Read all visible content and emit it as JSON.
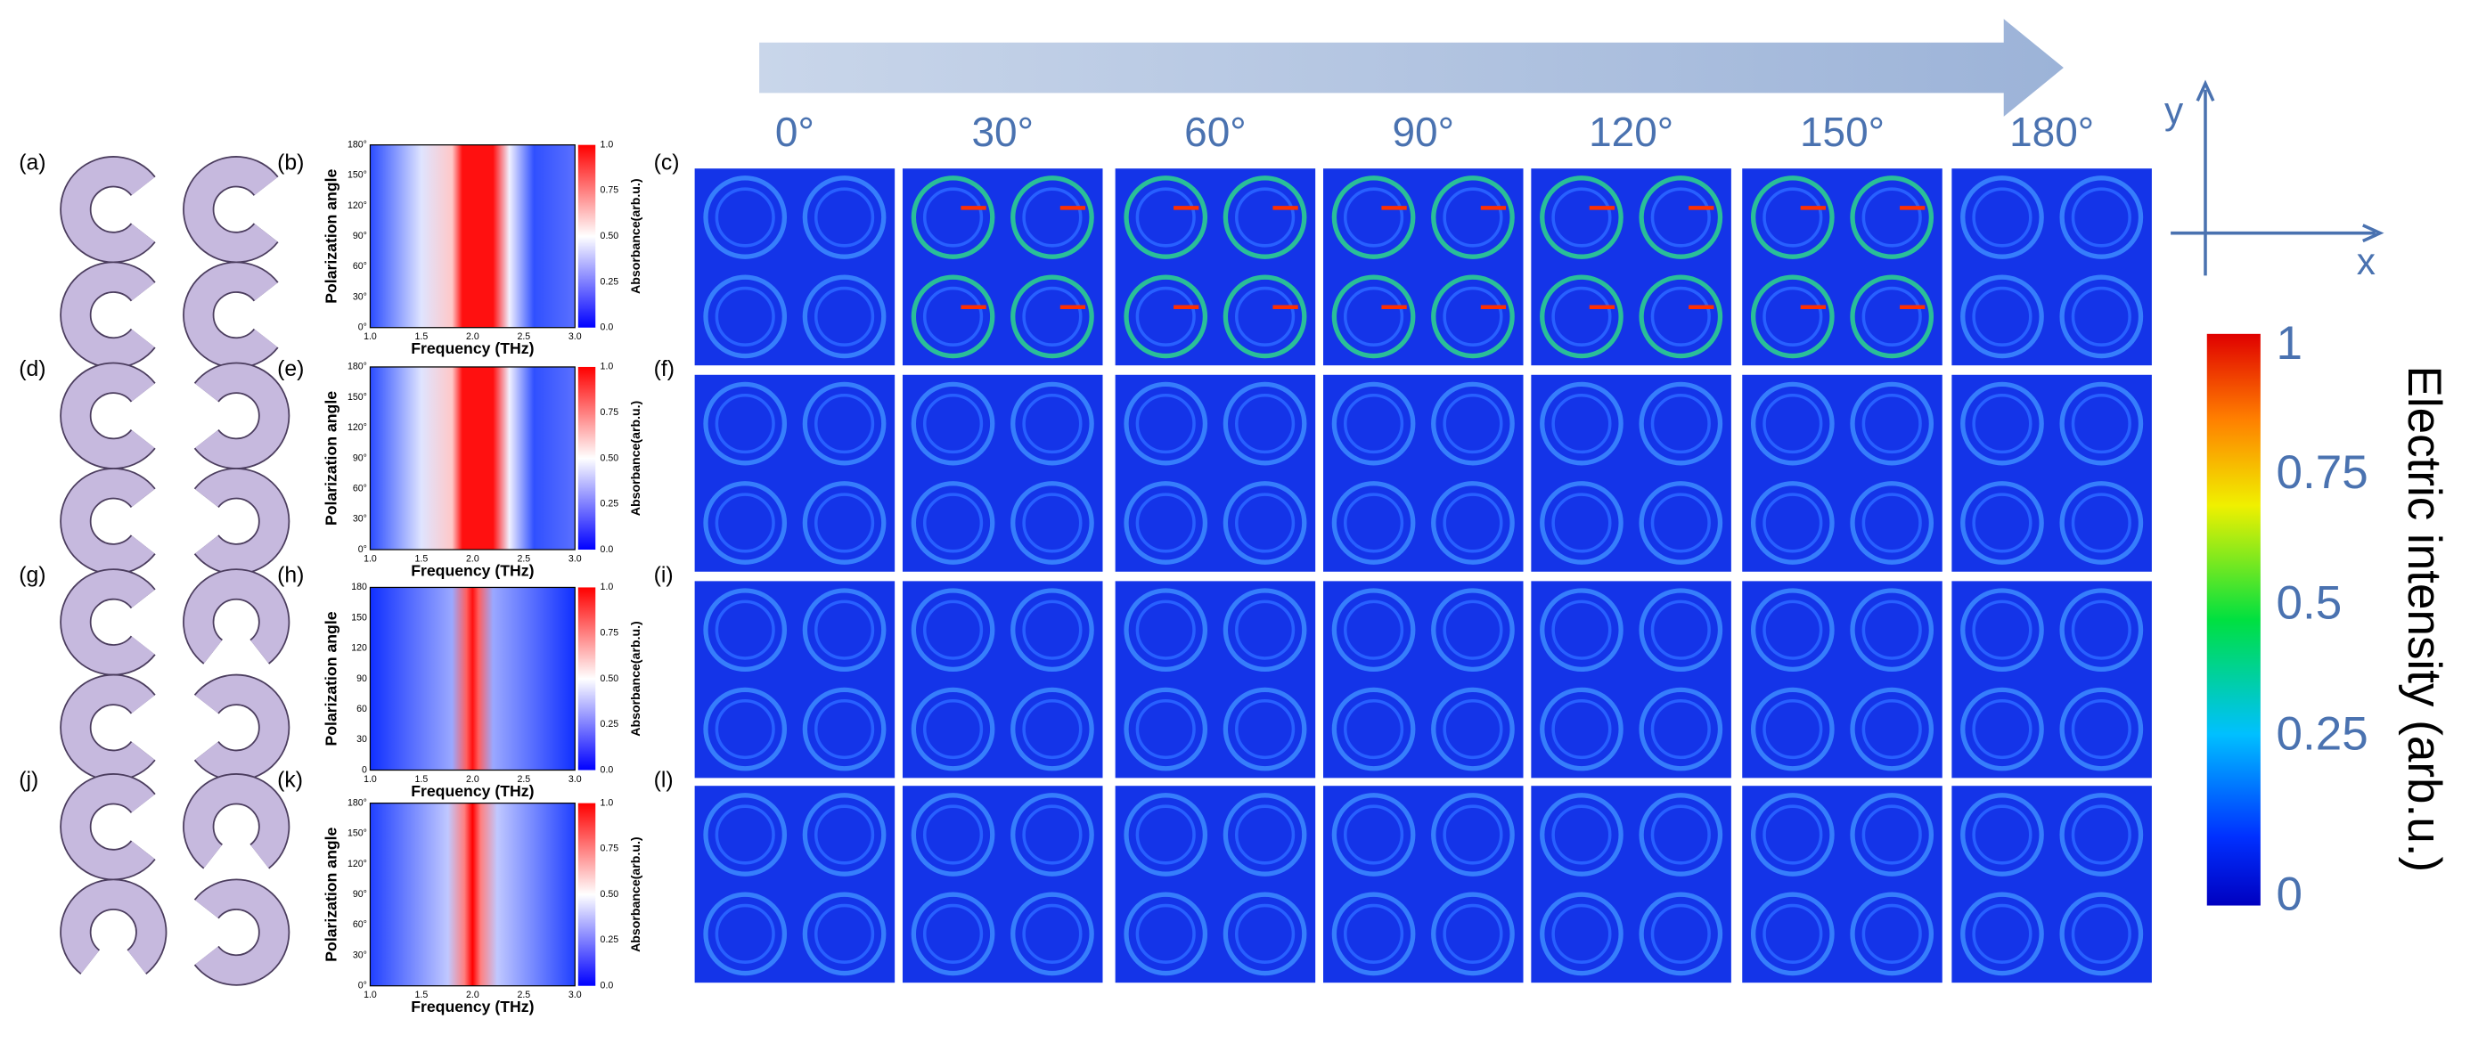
{
  "angles": [
    "0°",
    "30°",
    "60°",
    "90°",
    "120°",
    "150°",
    "180°"
  ],
  "axes": {
    "y": "y",
    "x": "x"
  },
  "colorbar": {
    "title": "Electric intensity (arb.u.)",
    "ticks": [
      "1",
      "0.75",
      "0.5",
      "0.25",
      "0"
    ]
  },
  "rows": [
    {
      "geometry_label": "(a)",
      "spectrum_label": "(b)",
      "field_label": "(c)",
      "spectrum": {
        "ylabel": "Polarization angle",
        "xlabel": "Frequency (THz)",
        "cbar_label": "Absorbance(arb.u.)",
        "xticks": [
          "1.0",
          "1.5",
          "2.0",
          "2.5",
          "3.0"
        ],
        "yticks": [
          "0°",
          "30°",
          "60°",
          "90°",
          "120°",
          "150°",
          "180°"
        ],
        "cbar_ticks": [
          "0.0",
          "0.25",
          "0.50",
          "0.75",
          "1.0"
        ]
      }
    },
    {
      "geometry_label": "(d)",
      "spectrum_label": "(e)",
      "field_label": "(f)",
      "spectrum": {
        "ylabel": "Polarization angle",
        "xlabel": "Frequency (THz)",
        "cbar_label": "Absorbance(arb.u.)",
        "xticks": [
          "1.0",
          "1.5",
          "2.0",
          "2.5",
          "3.0"
        ],
        "yticks": [
          "0°",
          "30°",
          "60°",
          "90°",
          "120°",
          "150°",
          "180°"
        ],
        "cbar_ticks": [
          "0.0",
          "0.25",
          "0.50",
          "0.75",
          "1.0"
        ]
      }
    },
    {
      "geometry_label": "(g)",
      "spectrum_label": "(h)",
      "field_label": "(i)",
      "spectrum": {
        "ylabel": "Polarization angle",
        "xlabel": "Frequency (THz)",
        "cbar_label": "Absorbance(arb.u.)",
        "xticks": [
          "1.0",
          "1.5",
          "2.0",
          "2.5",
          "3.0"
        ],
        "yticks": [
          "0",
          "30",
          "60",
          "90",
          "120",
          "150",
          "180"
        ],
        "cbar_ticks": [
          "0.0",
          "0.25",
          "0.50",
          "0.75",
          "1.0"
        ]
      }
    },
    {
      "geometry_label": "(j)",
      "spectrum_label": "(k)",
      "field_label": "(l)",
      "spectrum": {
        "ylabel": "Polarization angle",
        "xlabel": "Frequency (THz)",
        "cbar_label": "Absorbance(arb.u.)",
        "xticks": [
          "1.0",
          "1.5",
          "2.0",
          "2.5",
          "3.0"
        ],
        "yticks": [
          "0°",
          "30°",
          "60°",
          "90°",
          "120°",
          "150°",
          "180°"
        ],
        "cbar_ticks": [
          "0.0",
          "0.25",
          "0.50",
          "0.75",
          "1.0"
        ]
      }
    }
  ]
}
